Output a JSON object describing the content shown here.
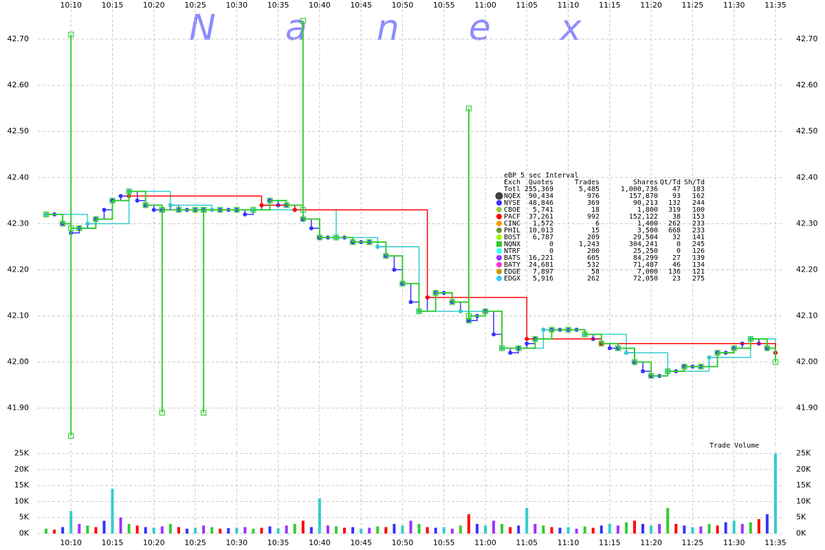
{
  "chart_data": [
    {
      "type": "line",
      "watermark": "Nanex",
      "step": true,
      "xlim": [
        "10:06",
        "11:36"
      ],
      "xticks": [
        "10:10",
        "10:15",
        "10:20",
        "10:25",
        "10:30",
        "10:35",
        "10:40",
        "10:45",
        "10:50",
        "10:55",
        "11:00",
        "11:05",
        "11:10",
        "11:15",
        "11:20",
        "11:25",
        "11:30",
        "11:35"
      ],
      "ylim": [
        41.816,
        42.785
      ],
      "yticks": [
        {
          "value": 41.9,
          "label": "41.90"
        },
        {
          "value": 42.0,
          "label": "42.00"
        },
        {
          "value": 42.1,
          "label": "42.10"
        },
        {
          "value": 42.2,
          "label": "42.20"
        },
        {
          "value": 42.3,
          "label": "42.30"
        },
        {
          "value": 42.4,
          "label": "42.40"
        },
        {
          "value": 42.5,
          "label": "42.50"
        },
        {
          "value": 42.6,
          "label": "42.60"
        },
        {
          "value": 42.7,
          "label": "42.70"
        }
      ],
      "grid": true,
      "series": [
        {
          "name": "NYSE",
          "color": "#3333ff",
          "marker": "circle",
          "x": [
            "10:07",
            "10:08",
            "10:09",
            "10:10",
            "10:11",
            "10:12",
            "10:13",
            "10:14",
            "10:15",
            "10:16",
            "10:17",
            "10:18",
            "10:19",
            "10:20",
            "10:21",
            "10:22",
            "10:23",
            "10:24",
            "10:25",
            "10:26",
            "10:27",
            "10:28",
            "10:29",
            "10:30",
            "10:31",
            "10:32",
            "10:33",
            "10:34",
            "10:35",
            "10:36",
            "10:37",
            "10:38",
            "10:39",
            "10:40",
            "10:41",
            "10:42",
            "10:43",
            "10:44",
            "10:45",
            "10:46",
            "10:47",
            "10:48",
            "10:49",
            "10:50",
            "10:51",
            "10:52",
            "10:53",
            "10:54",
            "10:55",
            "10:56",
            "10:57",
            "10:58",
            "10:59",
            "11:00",
            "11:01",
            "11:02",
            "11:03",
            "11:04",
            "11:05",
            "11:06",
            "11:07",
            "11:08",
            "11:09",
            "11:10",
            "11:11",
            "11:12",
            "11:13",
            "11:14",
            "11:15",
            "11:16",
            "11:17",
            "11:18",
            "11:19",
            "11:20",
            "11:21",
            "11:22",
            "11:23",
            "11:24",
            "11:25",
            "11:26",
            "11:27",
            "11:28",
            "11:29",
            "11:30",
            "11:31",
            "11:32",
            "11:33",
            "11:34",
            "11:35"
          ],
          "values": [
            42.32,
            42.32,
            42.3,
            42.28,
            42.29,
            42.3,
            42.31,
            42.33,
            42.35,
            42.36,
            42.37,
            42.35,
            42.34,
            42.33,
            42.33,
            42.34,
            42.33,
            42.33,
            42.33,
            42.33,
            42.33,
            42.33,
            42.33,
            42.33,
            42.32,
            42.33,
            42.34,
            42.35,
            42.34,
            42.34,
            42.33,
            42.31,
            42.29,
            42.27,
            42.27,
            42.27,
            42.27,
            42.26,
            42.26,
            42.26,
            42.25,
            42.23,
            42.2,
            42.17,
            42.13,
            42.11,
            42.14,
            42.15,
            42.15,
            42.13,
            42.11,
            42.09,
            42.1,
            42.11,
            42.06,
            42.03,
            42.02,
            42.03,
            42.04,
            42.05,
            42.07,
            42.07,
            42.07,
            42.07,
            42.07,
            42.06,
            42.05,
            42.04,
            42.03,
            42.03,
            42.02,
            42.0,
            41.98,
            41.97,
            41.97,
            41.98,
            41.98,
            41.99,
            41.99,
            41.99,
            42.01,
            42.02,
            42.02,
            42.03,
            42.04,
            42.05,
            42.04,
            42.03,
            42.02
          ]
        },
        {
          "name": "EDGX",
          "color": "#33cccc",
          "marker": "circle",
          "x": [
            "10:07",
            "10:12",
            "10:17",
            "10:22",
            "10:27",
            "10:32",
            "10:37",
            "10:42",
            "10:47",
            "10:52",
            "10:57",
            "11:02",
            "11:07",
            "11:12",
            "11:17",
            "11:22",
            "11:27",
            "11:32",
            "11:35"
          ],
          "values": [
            42.32,
            42.3,
            42.37,
            42.34,
            42.33,
            42.33,
            42.33,
            42.27,
            42.25,
            42.11,
            42.11,
            42.03,
            42.07,
            42.06,
            42.02,
            41.98,
            42.01,
            42.05,
            42.02
          ]
        },
        {
          "name": "PACF",
          "color": "#ff0000",
          "marker": "circle",
          "x": [
            "10:17",
            "10:33",
            "10:37",
            "10:53",
            "11:05",
            "11:14",
            "11:35"
          ],
          "values": [
            42.36,
            42.34,
            42.33,
            42.14,
            42.05,
            42.04,
            42.02
          ]
        },
        {
          "name": "NQNX",
          "color": "#33cc33",
          "marker": "square",
          "x": [
            "10:07",
            "10:09",
            "10:10",
            "10:10",
            "10:10",
            "10:11",
            "10:13",
            "10:15",
            "10:17",
            "10:19",
            "10:21",
            "10:21",
            "10:21",
            "10:23",
            "10:25",
            "10:26",
            "10:26",
            "10:26",
            "10:28",
            "10:30",
            "10:32",
            "10:34",
            "10:36",
            "10:38",
            "10:38",
            "10:38",
            "10:40",
            "10:42",
            "10:44",
            "10:46",
            "10:48",
            "10:50",
            "10:52",
            "10:54",
            "10:56",
            "10:58",
            "10:58",
            "10:58",
            "11:00",
            "11:02",
            "11:04",
            "11:06",
            "11:08",
            "11:10",
            "11:12",
            "11:14",
            "11:16",
            "11:18",
            "11:20",
            "11:22",
            "11:24",
            "11:26",
            "11:28",
            "11:30",
            "11:32",
            "11:34",
            "11:35"
          ],
          "values": [
            42.32,
            42.3,
            41.84,
            42.71,
            42.29,
            42.29,
            42.31,
            42.35,
            42.37,
            42.34,
            42.33,
            41.89,
            42.33,
            42.33,
            42.33,
            42.33,
            41.89,
            42.33,
            42.33,
            42.33,
            42.33,
            42.35,
            42.34,
            42.33,
            42.74,
            42.31,
            42.27,
            42.27,
            42.26,
            42.26,
            42.23,
            42.17,
            42.11,
            42.15,
            42.13,
            42.09,
            42.55,
            42.1,
            42.11,
            42.03,
            42.03,
            42.05,
            42.07,
            42.07,
            42.06,
            42.04,
            42.03,
            42.0,
            41.97,
            41.98,
            41.99,
            41.99,
            42.02,
            42.03,
            42.05,
            42.03,
            42.0
          ]
        }
      ],
      "legend_table": {
        "title": "eBP 5 sec Interval",
        "columns": [
          "Exch",
          "Quotes",
          "Trades",
          "Shares",
          "Qt/Td",
          "Sh/Td"
        ],
        "rows": [
          {
            "cells": [
              "Totl",
              "255,369",
              "5,485",
              "1,000,736",
              "47",
              "183"
            ]
          },
          {
            "color": "#404040",
            "cells": [
              "NQEX",
              "90,434",
              "976",
              "157,870",
              "93",
              "162"
            ]
          },
          {
            "color": "#3333ff",
            "cells": [
              "NYSE",
              "48,846",
              "369",
              "90,213",
              "132",
              "244"
            ]
          },
          {
            "color": "#99cc33",
            "cells": [
              "CBOE",
              "5,741",
              "18",
              "1,800",
              "319",
              "100"
            ]
          },
          {
            "color": "#ff0000",
            "cells": [
              "PACF",
              "37,261",
              "992",
              "152,122",
              "38",
              "153"
            ]
          },
          {
            "color": "#ff9900",
            "cells": [
              "CINC",
              "1,572",
              "6",
              "1,400",
              "262",
              "233"
            ]
          },
          {
            "color": "#669933",
            "cells": [
              "PHIL",
              "10,013",
              "15",
              "3,500",
              "668",
              "233"
            ]
          },
          {
            "color": "#99ff00",
            "cells": [
              "BOST",
              "6,787",
              "209",
              "29,504",
              "32",
              "141"
            ]
          },
          {
            "color": "#33cc33",
            "cells": [
              "NQNX",
              "0",
              "1,243",
              "304,241",
              "0",
              "245"
            ]
          },
          {
            "color": "#33ffff",
            "cells": [
              "NTRF",
              "0",
              "200",
              "25,250",
              "0",
              "126"
            ]
          },
          {
            "color": "#9933ff",
            "cells": [
              "BATS",
              "16,221",
              "605",
              "84,299",
              "27",
              "139"
            ]
          },
          {
            "color": "#ff33cc",
            "cells": [
              "BATY",
              "24,681",
              "532",
              "71,487",
              "46",
              "134"
            ]
          },
          {
            "color": "#cc9900",
            "cells": [
              "EDGE",
              "7,897",
              "58",
              "7,000",
              "136",
              "121"
            ]
          },
          {
            "color": "#33ccff",
            "cells": [
              "EDGX",
              "5,916",
              "262",
              "72,050",
              "23",
              "275"
            ]
          }
        ]
      }
    },
    {
      "type": "bar",
      "title": "Trade Volume",
      "xlim": [
        "10:06",
        "11:36"
      ],
      "xticks": [
        "10:10",
        "10:15",
        "10:20",
        "10:25",
        "10:30",
        "10:35",
        "10:40",
        "10:45",
        "10:50",
        "10:55",
        "11:00",
        "11:05",
        "11:10",
        "11:15",
        "11:20",
        "11:25",
        "11:30",
        "11:35"
      ],
      "ylim": [
        0,
        26000
      ],
      "yticks": [
        {
          "value": 0,
          "label": "0K"
        },
        {
          "value": 5000,
          "label": "5K"
        },
        {
          "value": 10000,
          "label": "10K"
        },
        {
          "value": 15000,
          "label": "15K"
        },
        {
          "value": 20000,
          "label": "20K"
        },
        {
          "value": 25000,
          "label": "25K"
        }
      ],
      "grid": true,
      "colors": [
        "#33cc33",
        "#ff0000",
        "#3333ff",
        "#33cccc",
        "#9933ff"
      ],
      "x": [
        "10:07",
        "10:08",
        "10:09",
        "10:10",
        "10:11",
        "10:12",
        "10:13",
        "10:14",
        "10:15",
        "10:16",
        "10:17",
        "10:18",
        "10:19",
        "10:20",
        "10:21",
        "10:22",
        "10:23",
        "10:24",
        "10:25",
        "10:26",
        "10:27",
        "10:28",
        "10:29",
        "10:30",
        "10:31",
        "10:32",
        "10:33",
        "10:34",
        "10:35",
        "10:36",
        "10:37",
        "10:38",
        "10:39",
        "10:40",
        "10:41",
        "10:42",
        "10:43",
        "10:44",
        "10:45",
        "10:46",
        "10:47",
        "10:48",
        "10:49",
        "10:50",
        "10:51",
        "10:52",
        "10:53",
        "10:54",
        "10:55",
        "10:56",
        "10:57",
        "10:58",
        "10:59",
        "11:00",
        "11:01",
        "11:02",
        "11:03",
        "11:04",
        "11:05",
        "11:06",
        "11:07",
        "11:08",
        "11:09",
        "11:10",
        "11:11",
        "11:12",
        "11:13",
        "11:14",
        "11:15",
        "11:16",
        "11:17",
        "11:18",
        "11:19",
        "11:20",
        "11:21",
        "11:22",
        "11:23",
        "11:24",
        "11:25",
        "11:26",
        "11:27",
        "11:28",
        "11:29",
        "11:30",
        "11:31",
        "11:32",
        "11:33",
        "11:34",
        "11:35"
      ],
      "values": [
        1500,
        1200,
        2000,
        7000,
        3000,
        2500,
        2000,
        4000,
        14000,
        5000,
        3000,
        2500,
        2000,
        1800,
        2200,
        3000,
        2000,
        1500,
        1800,
        2500,
        2000,
        1500,
        1700,
        1800,
        2000,
        1500,
        1800,
        2200,
        1600,
        2500,
        3000,
        4000,
        2000,
        11000,
        2500,
        2200,
        1800,
        2000,
        1500,
        1800,
        2200,
        2000,
        3000,
        2500,
        4000,
        3000,
        2000,
        1800,
        2000,
        1500,
        2500,
        6000,
        3000,
        2500,
        4000,
        3000,
        2000,
        2500,
        8000,
        3000,
        2500,
        2000,
        1800,
        2000,
        1500,
        2200,
        1800,
        2500,
        3000,
        2500,
        3500,
        4000,
        3000,
        2500,
        3000,
        8000,
        3000,
        2500,
        2000,
        2200,
        3000,
        2500,
        3500,
        4000,
        3000,
        3500,
        4500,
        6000,
        25000
      ]
    }
  ]
}
